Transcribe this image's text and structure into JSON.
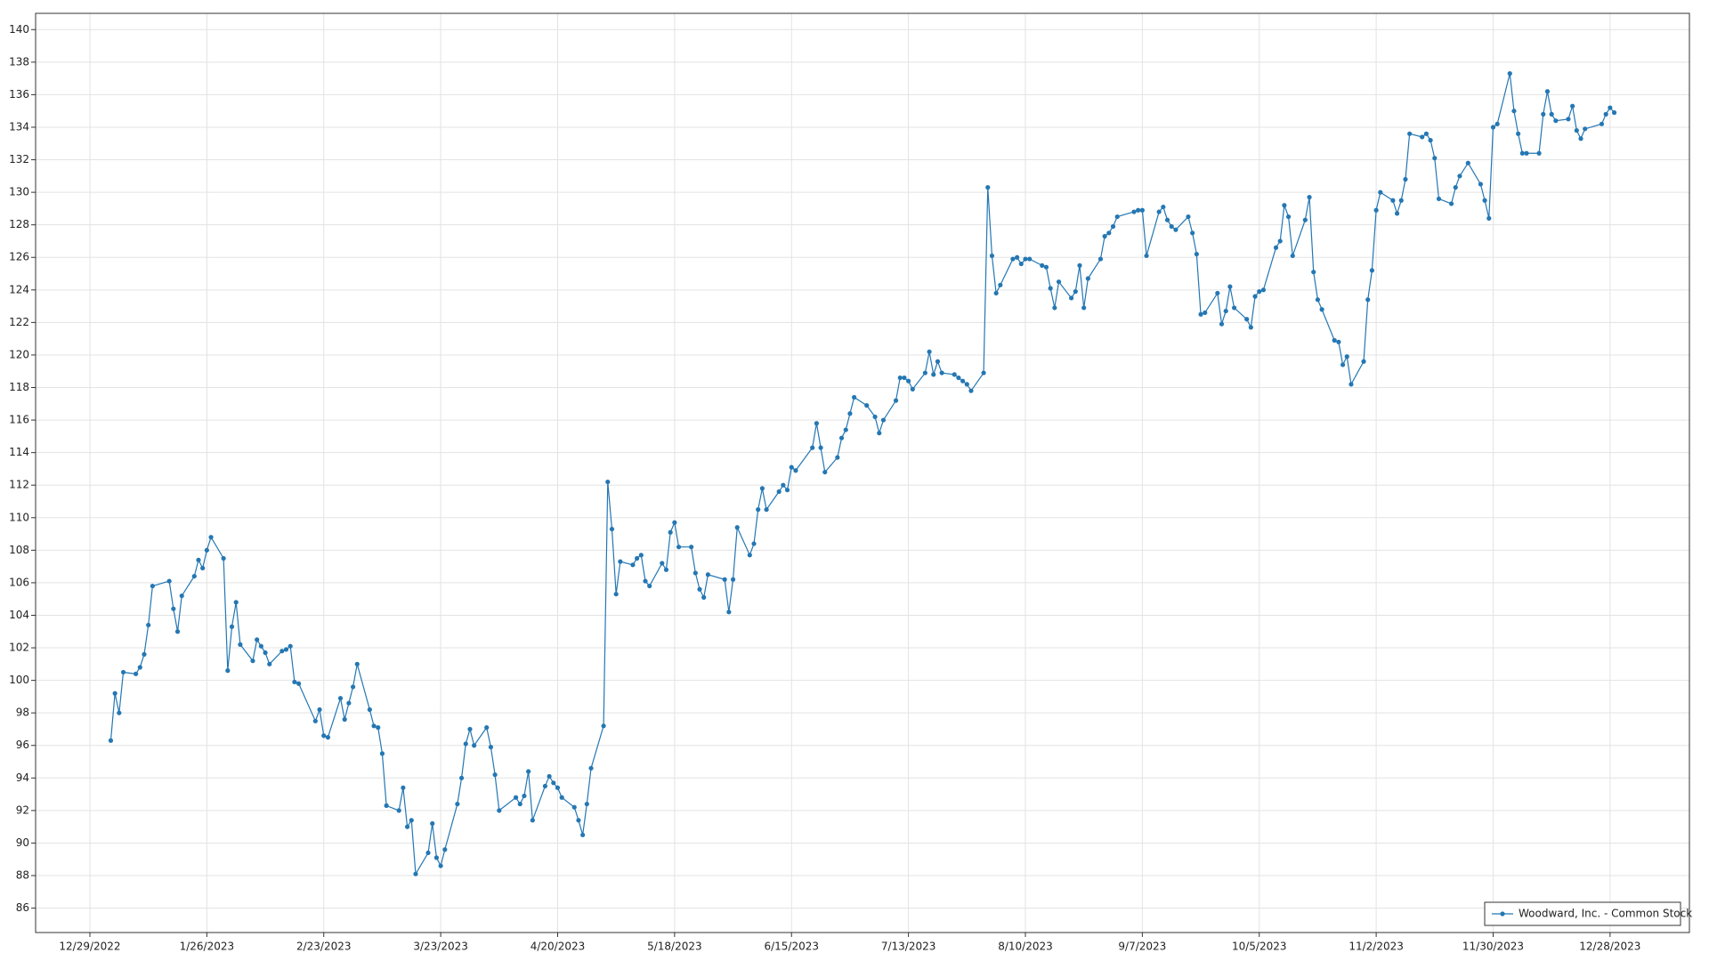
{
  "chart_data": {
    "type": "line",
    "x": [
      "1/3/2023",
      "1/4/2023",
      "1/5/2023",
      "1/6/2023",
      "1/9/2023",
      "1/10/2023",
      "1/11/2023",
      "1/12/2023",
      "1/13/2023",
      "1/17/2023",
      "1/18/2023",
      "1/19/2023",
      "1/20/2023",
      "1/23/2023",
      "1/24/2023",
      "1/25/2023",
      "1/26/2023",
      "1/27/2023",
      "1/30/2023",
      "1/31/2023",
      "2/1/2023",
      "2/2/2023",
      "2/3/2023",
      "2/6/2023",
      "2/7/2023",
      "2/8/2023",
      "2/9/2023",
      "2/10/2023",
      "2/13/2023",
      "2/14/2023",
      "2/15/2023",
      "2/16/2023",
      "2/17/2023",
      "2/21/2023",
      "2/22/2023",
      "2/23/2023",
      "2/24/2023",
      "2/27/2023",
      "2/28/2023",
      "3/1/2023",
      "3/2/2023",
      "3/3/2023",
      "3/6/2023",
      "3/7/2023",
      "3/8/2023",
      "3/9/2023",
      "3/10/2023",
      "3/13/2023",
      "3/14/2023",
      "3/15/2023",
      "3/16/2023",
      "3/17/2023",
      "3/20/2023",
      "3/21/2023",
      "3/22/2023",
      "3/23/2023",
      "3/24/2023",
      "3/27/2023",
      "3/28/2023",
      "3/29/2023",
      "3/30/2023",
      "3/31/2023",
      "4/3/2023",
      "4/4/2023",
      "4/5/2023",
      "4/6/2023",
      "4/10/2023",
      "4/11/2023",
      "4/12/2023",
      "4/13/2023",
      "4/14/2023",
      "4/17/2023",
      "4/18/2023",
      "4/19/2023",
      "4/20/2023",
      "4/21/2023",
      "4/24/2023",
      "4/25/2023",
      "4/26/2023",
      "4/27/2023",
      "4/28/2023",
      "5/1/2023",
      "5/2/2023",
      "5/3/2023",
      "5/4/2023",
      "5/5/2023",
      "5/8/2023",
      "5/9/2023",
      "5/10/2023",
      "5/11/2023",
      "5/12/2023",
      "5/15/2023",
      "5/16/2023",
      "5/17/2023",
      "5/18/2023",
      "5/19/2023",
      "5/22/2023",
      "5/23/2023",
      "5/24/2023",
      "5/25/2023",
      "5/26/2023",
      "5/30/2023",
      "5/31/2023",
      "6/1/2023",
      "6/2/2023",
      "6/5/2023",
      "6/6/2023",
      "6/7/2023",
      "6/8/2023",
      "6/9/2023",
      "6/12/2023",
      "6/13/2023",
      "6/14/2023",
      "6/15/2023",
      "6/16/2023",
      "6/20/2023",
      "6/21/2023",
      "6/22/2023",
      "6/23/2023",
      "6/26/2023",
      "6/27/2023",
      "6/28/2023",
      "6/29/2023",
      "6/30/2023",
      "7/3/2023",
      "7/5/2023",
      "7/6/2023",
      "7/7/2023",
      "7/10/2023",
      "7/11/2023",
      "7/12/2023",
      "7/13/2023",
      "7/14/2023",
      "7/17/2023",
      "7/18/2023",
      "7/19/2023",
      "7/20/2023",
      "7/21/2023",
      "7/24/2023",
      "7/25/2023",
      "7/26/2023",
      "7/27/2023",
      "7/28/2023",
      "7/31/2023",
      "8/1/2023",
      "8/2/2023",
      "8/3/2023",
      "8/4/2023",
      "8/7/2023",
      "8/8/2023",
      "8/9/2023",
      "8/10/2023",
      "8/11/2023",
      "8/14/2023",
      "8/15/2023",
      "8/16/2023",
      "8/17/2023",
      "8/18/2023",
      "8/21/2023",
      "8/22/2023",
      "8/23/2023",
      "8/24/2023",
      "8/25/2023",
      "8/28/2023",
      "8/29/2023",
      "8/30/2023",
      "8/31/2023",
      "9/1/2023",
      "9/5/2023",
      "9/6/2023",
      "9/7/2023",
      "9/8/2023",
      "9/11/2023",
      "9/12/2023",
      "9/13/2023",
      "9/14/2023",
      "9/15/2023",
      "9/18/2023",
      "9/19/2023",
      "9/20/2023",
      "9/21/2023",
      "9/22/2023",
      "9/25/2023",
      "9/26/2023",
      "9/27/2023",
      "9/28/2023",
      "9/29/2023",
      "10/2/2023",
      "10/3/2023",
      "10/4/2023",
      "10/5/2023",
      "10/6/2023",
      "10/9/2023",
      "10/10/2023",
      "10/11/2023",
      "10/12/2023",
      "10/13/2023",
      "10/16/2023",
      "10/17/2023",
      "10/18/2023",
      "10/19/2023",
      "10/20/2023",
      "10/23/2023",
      "10/24/2023",
      "10/25/2023",
      "10/26/2023",
      "10/27/2023",
      "10/30/2023",
      "10/31/2023",
      "11/1/2023",
      "11/2/2023",
      "11/3/2023",
      "11/6/2023",
      "11/7/2023",
      "11/8/2023",
      "11/9/2023",
      "11/10/2023",
      "11/13/2023",
      "11/14/2023",
      "11/15/2023",
      "11/16/2023",
      "11/17/2023",
      "11/20/2023",
      "11/21/2023",
      "11/22/2023",
      "11/24/2023",
      "11/27/2023",
      "11/28/2023",
      "11/29/2023",
      "11/30/2023",
      "12/1/2023",
      "12/4/2023",
      "12/5/2023",
      "12/6/2023",
      "12/7/2023",
      "12/8/2023",
      "12/11/2023",
      "12/12/2023",
      "12/13/2023",
      "12/14/2023",
      "12/15/2023",
      "12/18/2023",
      "12/19/2023",
      "12/20/2023",
      "12/21/2023",
      "12/22/2023",
      "12/26/2023",
      "12/27/2023",
      "12/28/2023",
      "12/29/2023"
    ],
    "series": [
      {
        "name": "Woodward, Inc. - Common Stock",
        "color": "#2477b3",
        "values": [
          96.3,
          99.2,
          98.0,
          100.5,
          100.4,
          100.8,
          101.6,
          103.4,
          105.8,
          106.1,
          104.4,
          103.0,
          105.2,
          106.4,
          107.4,
          106.9,
          108.0,
          108.8,
          107.5,
          100.6,
          103.3,
          104.8,
          102.2,
          101.2,
          102.5,
          102.1,
          101.7,
          101.0,
          101.8,
          101.9,
          102.1,
          99.9,
          99.8,
          97.5,
          98.2,
          96.6,
          96.5,
          98.9,
          97.6,
          98.6,
          99.6,
          101.0,
          98.2,
          97.2,
          97.1,
          95.5,
          92.3,
          92.0,
          93.4,
          91.0,
          91.4,
          88.1,
          89.4,
          91.2,
          89.1,
          88.6,
          89.6,
          92.4,
          94.0,
          96.1,
          97.0,
          96.0,
          97.1,
          95.9,
          94.2,
          92.0,
          92.8,
          92.4,
          92.9,
          94.4,
          91.4,
          93.5,
          94.1,
          93.7,
          93.4,
          92.8,
          92.2,
          91.4,
          90.5,
          92.4,
          94.6,
          97.2,
          112.2,
          109.3,
          105.3,
          107.3,
          107.1,
          107.5,
          107.7,
          106.1,
          105.8,
          107.2,
          106.8,
          109.1,
          109.7,
          108.2,
          108.2,
          106.6,
          105.6,
          105.1,
          106.5,
          106.2,
          104.2,
          106.2,
          109.4,
          107.7,
          108.4,
          110.5,
          111.8,
          110.5,
          111.6,
          112.0,
          111.7,
          113.1,
          112.9,
          114.3,
          115.8,
          114.3,
          112.8,
          113.7,
          114.9,
          115.4,
          116.4,
          117.4,
          116.9,
          116.2,
          115.2,
          116.0,
          117.2,
          118.6,
          118.6,
          118.4,
          117.9,
          118.9,
          120.2,
          118.8,
          119.6,
          118.9,
          118.8,
          118.6,
          118.4,
          118.2,
          117.8,
          118.9,
          130.3,
          126.1,
          123.8,
          124.3,
          125.9,
          126.0,
          125.6,
          125.9,
          125.9,
          125.5,
          125.4,
          124.1,
          122.9,
          124.5,
          123.5,
          123.9,
          125.5,
          122.9,
          124.7,
          125.9,
          127.3,
          127.5,
          127.9,
          128.5,
          128.8,
          128.9,
          128.9,
          126.1,
          128.8,
          129.1,
          128.3,
          127.9,
          127.7,
          128.5,
          127.5,
          126.2,
          122.5,
          122.6,
          123.8,
          121.9,
          122.7,
          124.2,
          122.9,
          122.2,
          121.7,
          123.6,
          123.9,
          124.0,
          126.6,
          127.0,
          129.2,
          128.5,
          126.1,
          128.3,
          129.7,
          125.1,
          123.4,
          122.8,
          120.9,
          120.8,
          119.4,
          119.9,
          118.2,
          119.6,
          123.4,
          125.2,
          128.9,
          130.0,
          129.5,
          128.7,
          129.5,
          130.8,
          133.6,
          133.4,
          133.6,
          133.2,
          132.1,
          129.6,
          129.3,
          130.3,
          131.0,
          131.8,
          130.5,
          129.5,
          128.4,
          134.0,
          134.2,
          137.3,
          135.0,
          133.6,
          132.4,
          132.4,
          132.4,
          134.8,
          136.2,
          134.8,
          134.4,
          134.5,
          135.3,
          133.8,
          133.3,
          133.9,
          134.2,
          134.8,
          135.2,
          134.9
        ]
      }
    ],
    "xlim": [
      "12/16/2022",
      "1/16/2024"
    ],
    "xticks": [
      "12/29/2022",
      "1/26/2023",
      "2/23/2023",
      "3/23/2023",
      "4/20/2023",
      "5/18/2023",
      "6/15/2023",
      "7/13/2023",
      "8/10/2023",
      "9/7/2023",
      "10/5/2023",
      "11/2/2023",
      "11/30/2023",
      "12/28/2023"
    ],
    "ylim": [
      84.5,
      141
    ],
    "yticks": [
      86,
      88,
      90,
      92,
      94,
      96,
      98,
      100,
      102,
      104,
      106,
      108,
      110,
      112,
      114,
      116,
      118,
      120,
      122,
      124,
      126,
      128,
      130,
      132,
      134,
      136,
      138,
      140
    ],
    "grid": true,
    "legend": "lower-right"
  }
}
